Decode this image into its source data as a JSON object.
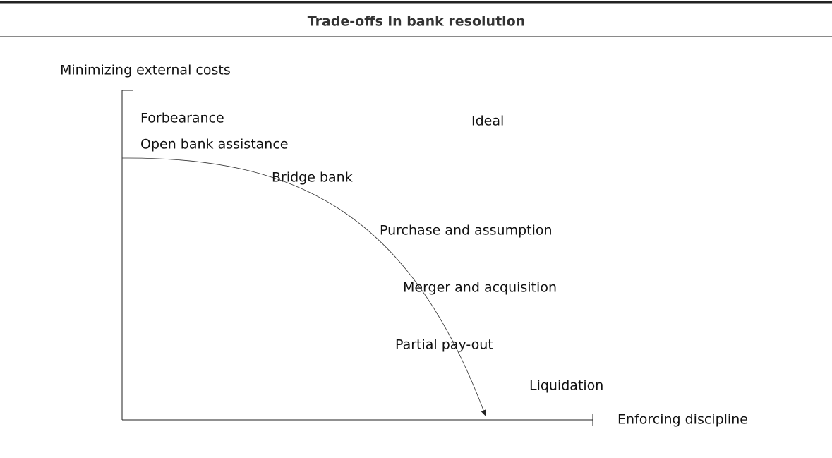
{
  "header": {
    "title": "Trade-offs in bank resolution"
  },
  "axes": {
    "y_label": "Minimizing external costs",
    "x_label": "Enforcing discipline"
  },
  "labels": [
    "Forbearance",
    "Ideal",
    "Open bank assistance",
    "Bridge bank",
    "Purchase and assumption",
    "Merger and acquisition",
    "Partial pay-out",
    "Liquidation"
  ]
}
